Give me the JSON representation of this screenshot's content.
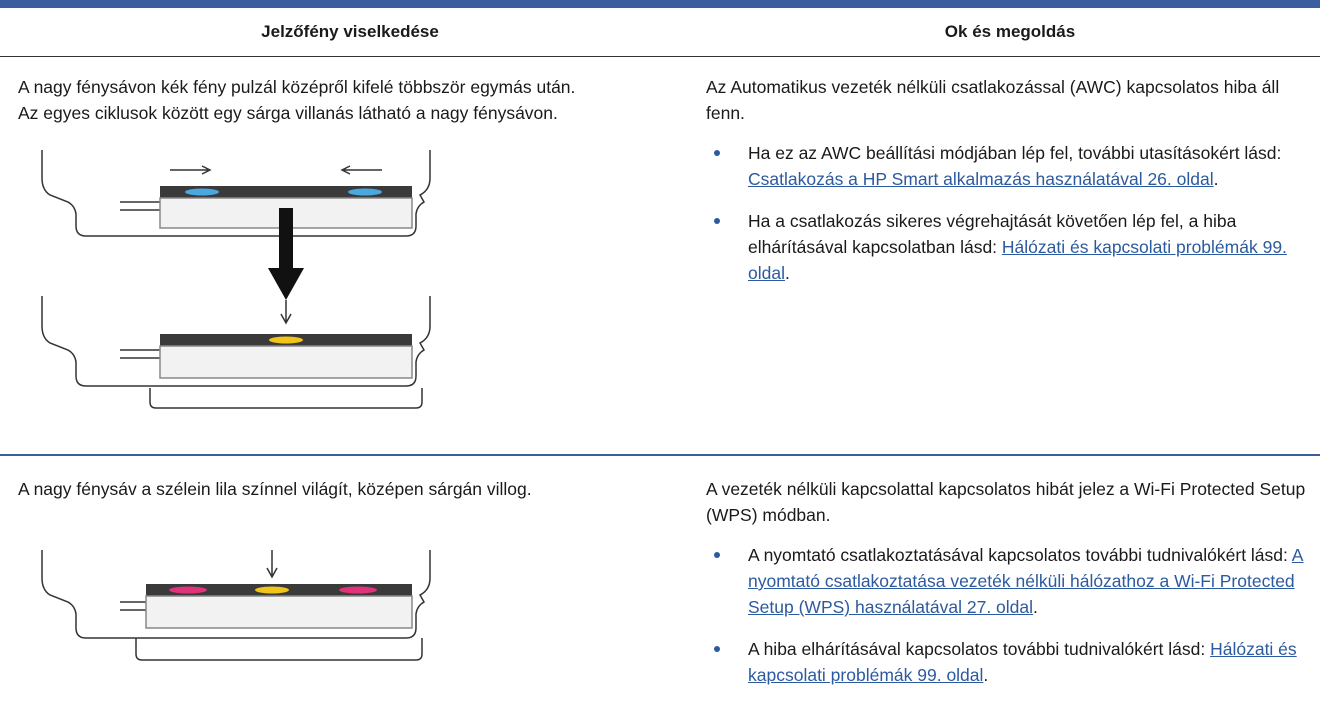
{
  "table": {
    "header": [
      "Jelzőfény viselkedése",
      "Ok és megoldás"
    ],
    "rows": [
      {
        "behavior": [
          "A nagy fénysávon kék fény pulzál középről kifelé többször egymás után.",
          "Az egyes ciklusok között egy sárga villanás látható a nagy fénysávon."
        ],
        "cause": "Az Automatikus vezeték nélküli csatlakozással (AWC) kapcsolatos hiba áll fenn.",
        "items": [
          {
            "text": "Ha ez az AWC beállítási módjában lép fel, további utasításokért lásd: ",
            "link": "Csatlakozás a HP Smart alkalmazás használatával 26. oldal",
            "suffix": "."
          },
          {
            "text": "Ha a csatlakozás sikeres végrehajtását követően lép fel, a hiba elhárításával kapcsolatban lásd: ",
            "link": "Hálózati és kapcsolati problémák 99. oldal",
            "suffix": "."
          }
        ]
      },
      {
        "behavior": [
          "A nagy fénysáv a szélein lila színnel világít, középen sárgán villog."
        ],
        "cause": "A vezeték nélküli kapcsolattal kapcsolatos hibát jelez a Wi-Fi Protected Setup (WPS) módban.",
        "items": [
          {
            "text": "A nyomtató csatlakoztatásával kapcsolatos további tudnivalókért lásd: ",
            "link": "A nyomtató csatlakoztatása vezeték nélküli hálózathoz a Wi-Fi Protected Setup (WPS) használatával 27. oldal",
            "suffix": "."
          },
          {
            "text": "A hiba elhárításával kapcsolatos további tudnivalókért lásd: ",
            "link": "Hálózati és kapcsolati problémák 99. oldal",
            "suffix": "."
          }
        ]
      }
    ]
  }
}
